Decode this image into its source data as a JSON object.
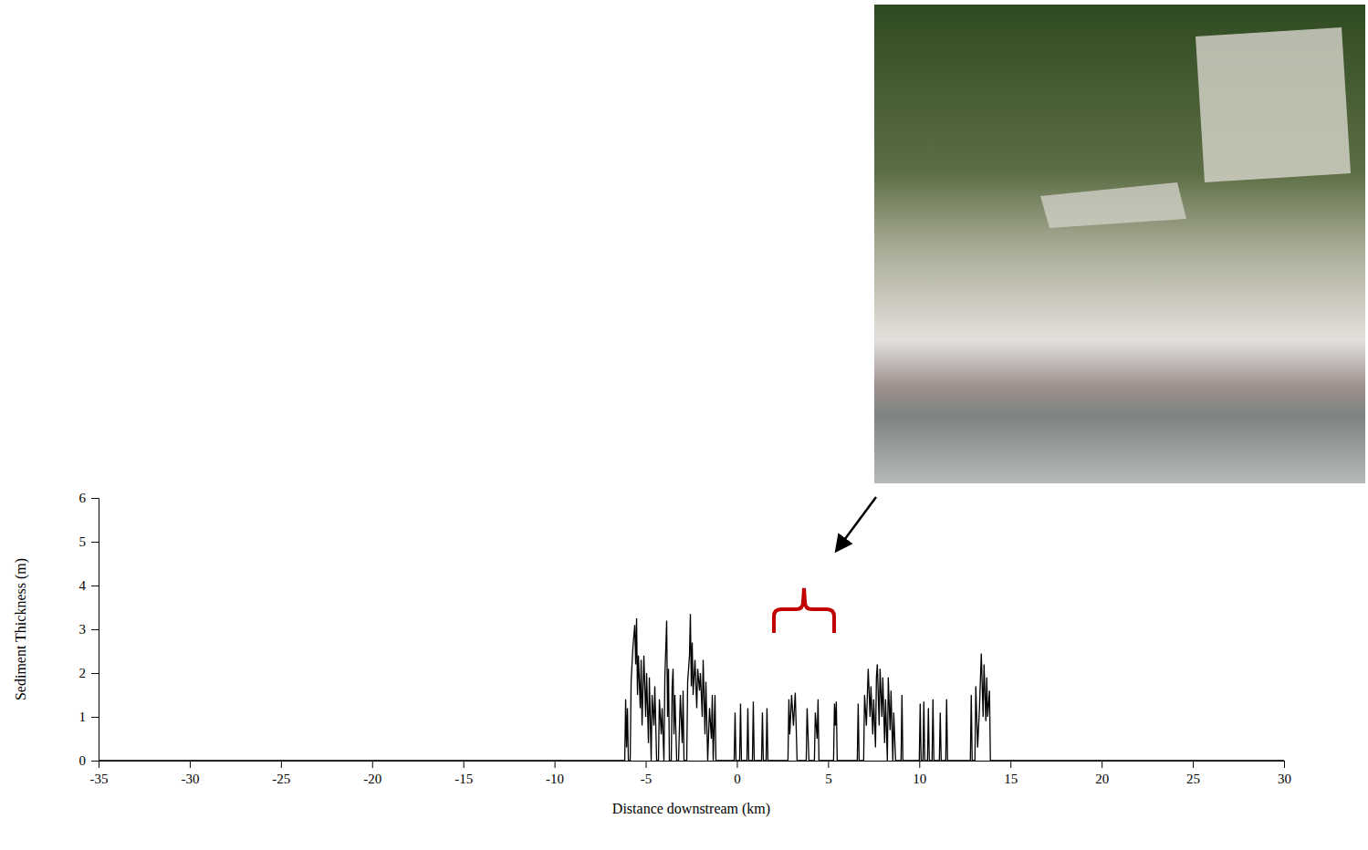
{
  "chart_data": {
    "type": "line",
    "xlabel": "Distance downstream (km)",
    "ylabel": "Sediment Thickness (m)",
    "xlim": [
      -35,
      30
    ],
    "ylim": [
      0,
      6
    ],
    "xticks": [
      -35,
      -30,
      -25,
      -20,
      -15,
      -10,
      -5,
      0,
      5,
      10,
      15,
      20,
      25,
      30
    ],
    "yticks": [
      0,
      1,
      2,
      3,
      4,
      5,
      6
    ],
    "x": [
      -35,
      -6.15,
      -6.1,
      -6.05,
      -6.0,
      -5.95,
      -5.85,
      -5.8,
      -5.7,
      -5.6,
      -5.55,
      -5.5,
      -5.45,
      -5.4,
      -5.3,
      -5.25,
      -5.2,
      -5.1,
      -5.0,
      -4.95,
      -4.85,
      -4.8,
      -4.7,
      -4.65,
      -4.55,
      -4.5,
      -4.4,
      -4.3,
      -4.25,
      -4.15,
      -4.1,
      -4.0,
      -3.95,
      -3.85,
      -3.8,
      -3.75,
      -3.7,
      -3.6,
      -3.55,
      -3.5,
      -3.45,
      -3.4,
      -3.3,
      -3.2,
      -3.1,
      -3.0,
      -2.95,
      -2.9,
      -2.75,
      -2.7,
      -2.6,
      -2.55,
      -2.5,
      -2.45,
      -2.4,
      -2.3,
      -2.2,
      -2.15,
      -2.05,
      -2.0,
      -1.9,
      -1.85,
      -1.75,
      -1.7,
      -1.6,
      -1.5,
      -1.4,
      -1.35,
      -1.3,
      -1.2,
      -1.15,
      -0.15,
      -0.1,
      -0.05,
      0.15,
      0.2,
      0.25,
      0.55,
      0.6,
      0.65,
      0.85,
      0.9,
      0.95,
      1.35,
      1.4,
      1.45,
      1.6,
      1.65,
      1.7,
      2.8,
      2.85,
      2.9,
      3.0,
      3.1,
      3.2,
      3.3,
      3.8,
      3.85,
      3.95,
      4.25,
      4.3,
      4.4,
      4.45,
      4.5,
      5.3,
      5.35,
      5.4,
      5.45,
      5.5,
      6.6,
      6.65,
      6.7,
      6.95,
      7.0,
      7.1,
      7.2,
      7.3,
      7.35,
      7.45,
      7.5,
      7.6,
      7.65,
      7.7,
      7.8,
      7.85,
      7.95,
      8.0,
      8.1,
      8.15,
      8.25,
      8.3,
      8.4,
      8.45,
      8.55,
      8.6,
      8.7,
      9.0,
      9.05,
      9.1,
      10.0,
      10.05,
      10.1,
      10.2,
      10.25,
      10.3,
      10.45,
      10.5,
      10.55,
      10.7,
      10.75,
      10.8,
      11.1,
      11.15,
      11.2,
      11.45,
      11.5,
      11.55,
      12.8,
      12.85,
      12.9,
      13.05,
      13.1,
      13.2,
      13.3,
      13.4,
      13.5,
      13.55,
      13.65,
      13.7,
      13.75,
      13.85,
      13.9,
      30
    ],
    "series": [
      {
        "color": "#000000",
        "values": [
          0,
          0,
          1.4,
          0.3,
          1.2,
          0,
          0,
          1.8,
          2.6,
          3.1,
          2.2,
          3.25,
          1.5,
          2.4,
          1.2,
          2.3,
          0.8,
          2.4,
          1.0,
          2.0,
          0.4,
          1.9,
          0,
          1.5,
          0.8,
          1.7,
          0,
          0,
          1.4,
          0.6,
          1.2,
          0,
          1.9,
          3.2,
          1.0,
          2.1,
          0,
          0,
          1.7,
          2.1,
          0.6,
          1.5,
          0,
          0,
          1.5,
          0.4,
          1.6,
          0,
          0,
          1.8,
          2.4,
          3.35,
          1.7,
          2.7,
          1.5,
          2.3,
          1.2,
          2.1,
          1.6,
          2.0,
          1.0,
          2.3,
          0.6,
          1.8,
          0,
          1.2,
          0.5,
          1.5,
          0,
          1.5,
          0,
          0,
          1.1,
          0,
          0,
          1.3,
          0,
          0,
          1.2,
          0,
          0,
          1.35,
          0,
          0,
          1.1,
          0,
          0,
          1.2,
          0,
          0,
          1.4,
          0.6,
          1.5,
          0.8,
          1.55,
          0,
          0,
          1.2,
          0,
          0,
          1.1,
          0.5,
          1.4,
          0,
          0,
          1.3,
          0.8,
          1.35,
          0,
          0,
          1.3,
          0,
          0,
          1.5,
          0.8,
          2.1,
          1.0,
          1.7,
          0.6,
          1.4,
          0.3,
          1.9,
          2.2,
          0.8,
          2.1,
          1.0,
          1.9,
          0.4,
          1.4,
          0,
          1.9,
          0.7,
          1.6,
          0,
          1.1,
          0,
          0,
          1.5,
          0,
          0,
          1.3,
          0,
          0,
          1.35,
          0,
          0,
          1.2,
          0,
          0,
          1.4,
          0,
          0,
          1.1,
          0,
          0,
          1.4,
          0,
          0,
          1.5,
          0,
          0,
          1.7,
          0.3,
          1.2,
          2.45,
          1.0,
          2.2,
          0.9,
          1.9,
          1.0,
          1.6,
          0,
          0
        ]
      }
    ]
  }
}
